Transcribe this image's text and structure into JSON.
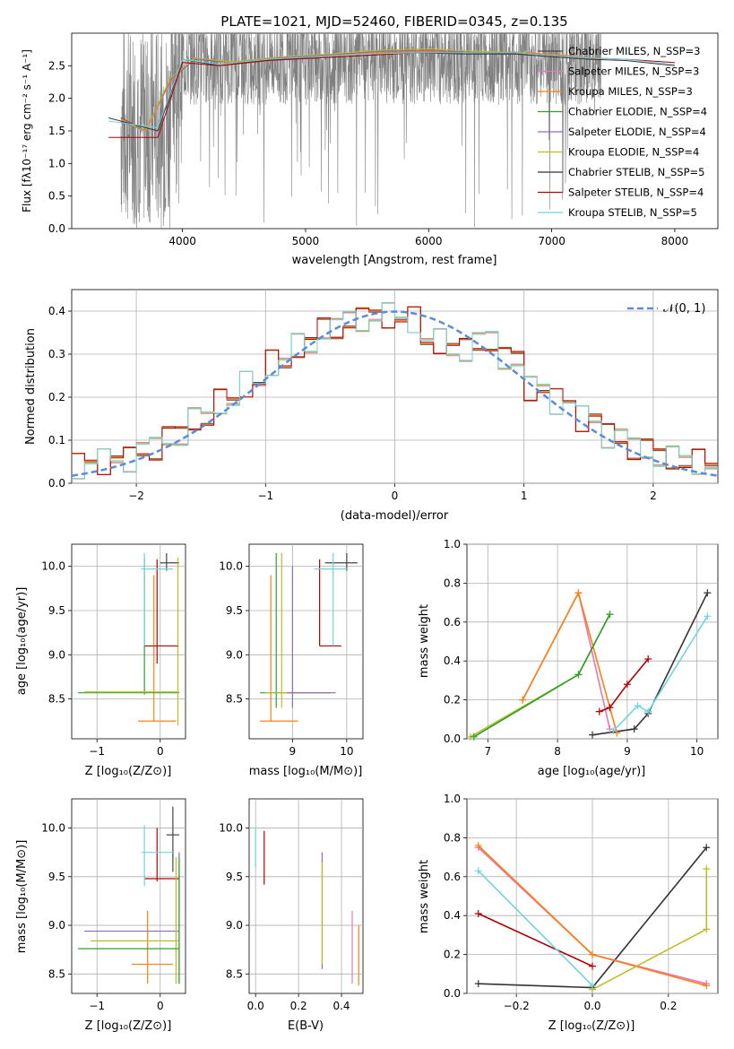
{
  "colors": {
    "chabrier_miles": "#444444",
    "salpeter_miles": "#e377c2",
    "kroupa_miles": "#ff7f0e",
    "chabrier_elodie": "#2ca02c",
    "salpeter_elodie": "#9467bd",
    "kroupa_elodie": "#bcbd22",
    "chabrier_stelib": "#333333",
    "salpeter_stelib": "#b00000",
    "kroupa_stelib": "#6fd4e0",
    "data": "#808080",
    "normal": "#5b8bd9"
  },
  "chart_data": [
    {
      "type": "line",
      "title": "PLATE=1021, MJD=52460, FIBERID=0345, z=0.135",
      "xlabel": "wavelength [Angstrom, rest frame]",
      "ylabel": "Flux [fλ10⁻¹⁷ erg cm⁻² s⁻¹ A⁻¹]",
      "xlim": [
        3100,
        8350
      ],
      "ylim": [
        0,
        3.0
      ],
      "xticks": [
        "4000",
        "5000",
        "6000",
        "7000",
        "8000"
      ],
      "yticks": [
        "0.0",
        "0.5",
        "1.0",
        "1.5",
        "2.0",
        "2.5"
      ],
      "legend_position": "upper-right",
      "series": [
        {
          "name": "Chabrier MILES, N_SSP=3",
          "x": [
            3500,
            3700,
            3900,
            4100,
            4400,
            4800,
            5200,
            5600,
            6000,
            6400,
            6800,
            7100,
            7400
          ],
          "values": [
            1.7,
            1.5,
            2.3,
            2.6,
            2.55,
            2.6,
            2.65,
            2.7,
            2.72,
            2.7,
            2.7,
            2.65,
            2.6
          ]
        },
        {
          "name": "Salpeter MILES, N_SSP=3",
          "x": [
            3500,
            3700,
            3900,
            4100,
            4400,
            4800,
            5200,
            5600,
            6000,
            6400,
            6800,
            7100,
            7400
          ],
          "values": [
            1.68,
            1.48,
            2.25,
            2.62,
            2.55,
            2.62,
            2.66,
            2.7,
            2.72,
            2.7,
            2.7,
            2.66,
            2.6
          ]
        },
        {
          "name": "Kroupa MILES, N_SSP=3",
          "x": [
            3500,
            3700,
            3900,
            4100,
            4400,
            4800,
            5200,
            5600,
            6000,
            6400,
            6800,
            7100,
            7400
          ],
          "values": [
            1.69,
            1.49,
            2.26,
            2.62,
            2.54,
            2.62,
            2.66,
            2.7,
            2.72,
            2.7,
            2.7,
            2.66,
            2.6
          ]
        },
        {
          "name": "Chabrier ELODIE, N_SSP=4",
          "x": [
            3500,
            3700,
            3900,
            4100,
            4400,
            4800,
            5200,
            5600,
            6000,
            6400,
            6800
          ],
          "values": [
            1.65,
            1.5,
            2.28,
            2.6,
            2.56,
            2.62,
            2.67,
            2.72,
            2.74,
            2.7,
            2.68
          ]
        },
        {
          "name": "Salpeter ELODIE, N_SSP=4",
          "x": [
            3500,
            3700,
            3900,
            4100,
            4400,
            4800,
            5200,
            5600,
            6000,
            6400,
            6800
          ],
          "values": [
            1.64,
            1.5,
            2.28,
            2.6,
            2.56,
            2.62,
            2.67,
            2.72,
            2.74,
            2.7,
            2.68
          ]
        },
        {
          "name": "Kroupa ELODIE, N_SSP=4",
          "x": [
            3500,
            3700,
            3900,
            4100,
            4400,
            4800,
            5200,
            5600,
            6000,
            6400,
            6800
          ],
          "values": [
            1.66,
            1.5,
            2.3,
            2.62,
            2.56,
            2.64,
            2.68,
            2.74,
            2.76,
            2.72,
            2.7
          ]
        },
        {
          "name": "Chabrier STELIB, N_SSP=5",
          "x": [
            3400,
            3600,
            3800,
            4000,
            4300,
            4700,
            5100,
            5500,
            5900,
            6300,
            6700,
            7000,
            7300,
            7600,
            8000
          ],
          "values": [
            1.7,
            1.6,
            1.5,
            2.6,
            2.5,
            2.6,
            2.62,
            2.66,
            2.7,
            2.68,
            2.68,
            2.64,
            2.6,
            2.58,
            2.5
          ]
        },
        {
          "name": "Salpeter STELIB, N_SSP=4",
          "x": [
            3400,
            3600,
            3800,
            4000,
            4300,
            4700,
            5100,
            5500,
            5900,
            6300,
            6700,
            7000,
            7300,
            7600,
            8000
          ],
          "values": [
            1.4,
            1.4,
            1.4,
            2.55,
            2.5,
            2.58,
            2.62,
            2.66,
            2.7,
            2.7,
            2.7,
            2.66,
            2.62,
            2.6,
            2.55
          ]
        },
        {
          "name": "Kroupa STELIB, N_SSP=5",
          "x": [
            3400,
            3600,
            3800,
            4000,
            4300,
            4700,
            5100,
            5500,
            5900,
            6300,
            6700,
            7000,
            7300,
            7600,
            8000
          ],
          "values": [
            1.65,
            1.6,
            1.55,
            2.6,
            2.52,
            2.6,
            2.64,
            2.68,
            2.7,
            2.7,
            2.7,
            2.66,
            2.62,
            2.6,
            2.52
          ]
        }
      ]
    },
    {
      "type": "line",
      "xlabel": "(data-model)/error",
      "ylabel": "Normed distribution",
      "xlim": [
        -2.5,
        2.5
      ],
      "ylim": [
        0,
        0.45
      ],
      "xticks": [
        "−2",
        "−1",
        "0",
        "1",
        "2"
      ],
      "yticks": [
        "0.0",
        "0.1",
        "0.2",
        "0.3",
        "0.4"
      ],
      "legend": "𝒩(0, 1)",
      "legend_position": "upper-right",
      "grid": true,
      "x": [
        -2.5,
        -2.3,
        -2.1,
        -1.9,
        -1.7,
        -1.5,
        -1.3,
        -1.1,
        -0.9,
        -0.7,
        -0.5,
        -0.3,
        -0.1,
        0.1,
        0.3,
        0.5,
        0.7,
        0.9,
        1.1,
        1.3,
        1.5,
        1.7,
        1.9,
        2.1,
        2.3,
        2.5
      ],
      "values": [
        0.04,
        0.05,
        0.055,
        0.08,
        0.11,
        0.15,
        0.19,
        0.23,
        0.28,
        0.32,
        0.36,
        0.38,
        0.39,
        0.38,
        0.33,
        0.31,
        0.33,
        0.29,
        0.22,
        0.19,
        0.15,
        0.11,
        0.08,
        0.06,
        0.05,
        0.04
      ]
    },
    {
      "type": "scatter",
      "xlabel": "Z [log₁₀(Z/Z⊙)]",
      "ylabel": "age  [log₁₀(age/yr)]",
      "xlim": [
        -1.4,
        0.4
      ],
      "ylim": [
        8.05,
        10.25
      ],
      "xticks": [
        "−1",
        "0"
      ],
      "yticks": [
        "8.5",
        "9.0",
        "9.5",
        "10.0"
      ],
      "grid": true
    },
    {
      "type": "scatter",
      "xlabel": "mass [log₁₀(M/M⊙)]",
      "ylim": [
        8.05,
        10.25
      ],
      "xlim": [
        8.2,
        10.3
      ],
      "xticks": [
        "9",
        "10"
      ],
      "yticks": [
        "8.5",
        "9.0",
        "9.5",
        "10.0"
      ],
      "grid": true
    },
    {
      "type": "line",
      "xlabel": "age  [log₁₀(age/yr)]",
      "ylabel": "mass weight",
      "xlim": [
        6.7,
        10.3
      ],
      "ylim": [
        0,
        1.0
      ],
      "xticks": [
        "7",
        "8",
        "9",
        "10"
      ],
      "yticks": [
        "0.0",
        "0.2",
        "0.4",
        "0.6",
        "0.8",
        "1.0"
      ],
      "grid": true,
      "series": [
        {
          "x": [
            8.5,
            9.1,
            9.3,
            10.15
          ],
          "values": [
            0.02,
            0.05,
            0.13,
            0.75
          ]
        },
        {
          "x": [
            7.5,
            8.3,
            8.75
          ],
          "values": [
            0.2,
            0.75,
            0.05
          ]
        },
        {
          "x": [
            7.5,
            8.3,
            8.85
          ],
          "values": [
            0.2,
            0.75,
            0.03
          ]
        },
        {
          "x": [
            6.75,
            8.3,
            8.75
          ],
          "values": [
            0.01,
            0.33,
            0.64
          ]
        },
        {
          "x": [
            6.8,
            8.3,
            8.75
          ],
          "values": [
            0.01,
            0.33,
            0.64
          ]
        },
        {
          "x": [
            8.6,
            8.75,
            9.0,
            9.3
          ],
          "values": [
            0.14,
            0.16,
            0.28,
            0.41
          ]
        },
        {
          "x": [
            8.8,
            9.15,
            9.3,
            10.15
          ],
          "values": [
            0.04,
            0.17,
            0.14,
            0.63
          ]
        }
      ]
    },
    {
      "type": "scatter",
      "xlabel": "Z [log₁₀(Z/Z⊙)]",
      "ylabel": "mass [log₁₀(M/M⊙)]",
      "xlim": [
        -1.4,
        0.4
      ],
      "ylim": [
        8.3,
        10.3
      ],
      "xticks": [
        "−1",
        "0"
      ],
      "yticks": [
        "8.5",
        "9.0",
        "9.5",
        "10.0"
      ],
      "grid": true
    },
    {
      "type": "scatter",
      "xlabel": "E(B-V)",
      "xlim": [
        -0.03,
        0.5
      ],
      "ylim": [
        8.3,
        10.3
      ],
      "xticks": [
        "0.0",
        "0.2",
        "0.4"
      ],
      "yticks": [
        "8.5",
        "9.0",
        "9.5",
        "10.0"
      ],
      "grid": true
    },
    {
      "type": "line",
      "xlabel": "Z [log₁₀(Z/Z⊙)]",
      "ylabel": "mass weight",
      "xlim": [
        -0.33,
        0.33
      ],
      "ylim": [
        0,
        1.0
      ],
      "xticks": [
        "−0.2",
        "0.0",
        "0.2"
      ],
      "yticks": [
        "0.0",
        "0.2",
        "0.4",
        "0.6",
        "0.8",
        "1.0"
      ],
      "grid": true,
      "series": [
        {
          "x": [
            -0.3,
            0.0,
            0.3
          ],
          "values": [
            0.05,
            0.03,
            0.75
          ]
        },
        {
          "x": [
            -0.3,
            0.0,
            0.3
          ],
          "values": [
            0.75,
            0.2,
            0.05
          ]
        },
        {
          "x": [
            -0.3,
            0.0,
            0.3
          ],
          "values": [
            0.76,
            0.2,
            0.04
          ]
        },
        {
          "x": [
            0.0,
            0.3,
            0.3
          ],
          "values": [
            0.02,
            0.33,
            0.64
          ]
        },
        {
          "x": [
            -0.3,
            0.0
          ],
          "values": [
            0.41,
            0.14
          ]
        },
        {
          "x": [
            -0.3,
            0.0
          ],
          "values": [
            0.63,
            0.04
          ]
        }
      ]
    }
  ]
}
